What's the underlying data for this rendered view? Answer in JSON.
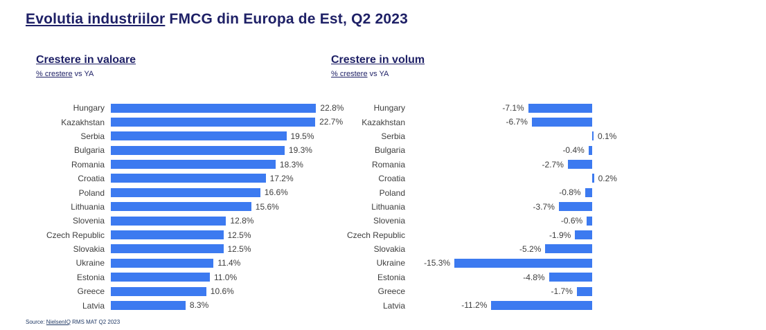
{
  "title": {
    "underlined": "Evolutia industriilor",
    "rest": " FMCG din Europa de Est, Q2 2023"
  },
  "source": {
    "prefix": "Source: ",
    "underlined": "NielsenIQ",
    "rest": " RMS MAT Q2 2023"
  },
  "colors": {
    "bar": "#3c7af0",
    "heading": "#1e2066",
    "text": "#3d3d3d",
    "source_text": "#1f3864"
  },
  "chart_data": [
    {
      "type": "bar",
      "orientation": "horizontal",
      "title": "Crestere in valoare",
      "subtitle_underlined": "% crestere",
      "subtitle_rest": " vs YA",
      "categories": [
        "Hungary",
        "Kazakhstan",
        "Serbia",
        "Bulgaria",
        "Romania",
        "Croatia",
        "Poland",
        "Lithuania",
        "Slovenia",
        "Czech Republic",
        "Slovakia",
        "Ukraine",
        "Estonia",
        "Greece",
        "Latvia"
      ],
      "values": [
        22.8,
        22.7,
        19.5,
        19.3,
        18.3,
        17.2,
        16.6,
        15.6,
        12.8,
        12.5,
        12.5,
        11.4,
        11.0,
        10.6,
        8.3
      ],
      "labels": [
        "22.8%",
        "22.7%",
        "19.5%",
        "19.3%",
        "18.3%",
        "17.2%",
        "16.6%",
        "15.6%",
        "12.8%",
        "12.5%",
        "12.5%",
        "11.4%",
        "11.0%",
        "10.6%",
        "8.3%"
      ],
      "xlim": [
        0,
        24
      ],
      "grid": false,
      "legend": false,
      "value_label_position": "end-of-bar"
    },
    {
      "type": "bar",
      "orientation": "horizontal",
      "title": "Crestere in volum",
      "subtitle_underlined": "% crestere",
      "subtitle_rest": " vs YA",
      "categories": [
        "Hungary",
        "Kazakhstan",
        "Serbia",
        "Bulgaria",
        "Romania",
        "Croatia",
        "Poland",
        "Lithuania",
        "Slovenia",
        "Czech Republic",
        "Slovakia",
        "Ukraine",
        "Estonia",
        "Greece",
        "Latvia"
      ],
      "values": [
        -7.1,
        -6.7,
        0.1,
        -0.4,
        -2.7,
        0.2,
        -0.8,
        -3.7,
        -0.6,
        -1.9,
        -5.2,
        -15.3,
        -4.8,
        -1.7,
        -11.2
      ],
      "labels": [
        "-7.1%",
        "-6.7%",
        "0.1%",
        "-0.4%",
        "-2.7%",
        "0.2%",
        "-0.8%",
        "-3.7%",
        "-0.6%",
        "-1.9%",
        "-5.2%",
        "-15.3%",
        "-4.8%",
        "-1.7%",
        "-11.2%"
      ],
      "xlim": [
        -16,
        3
      ],
      "baseline": 0,
      "grid": false,
      "legend": false,
      "value_label_position": "outside-bar"
    }
  ]
}
